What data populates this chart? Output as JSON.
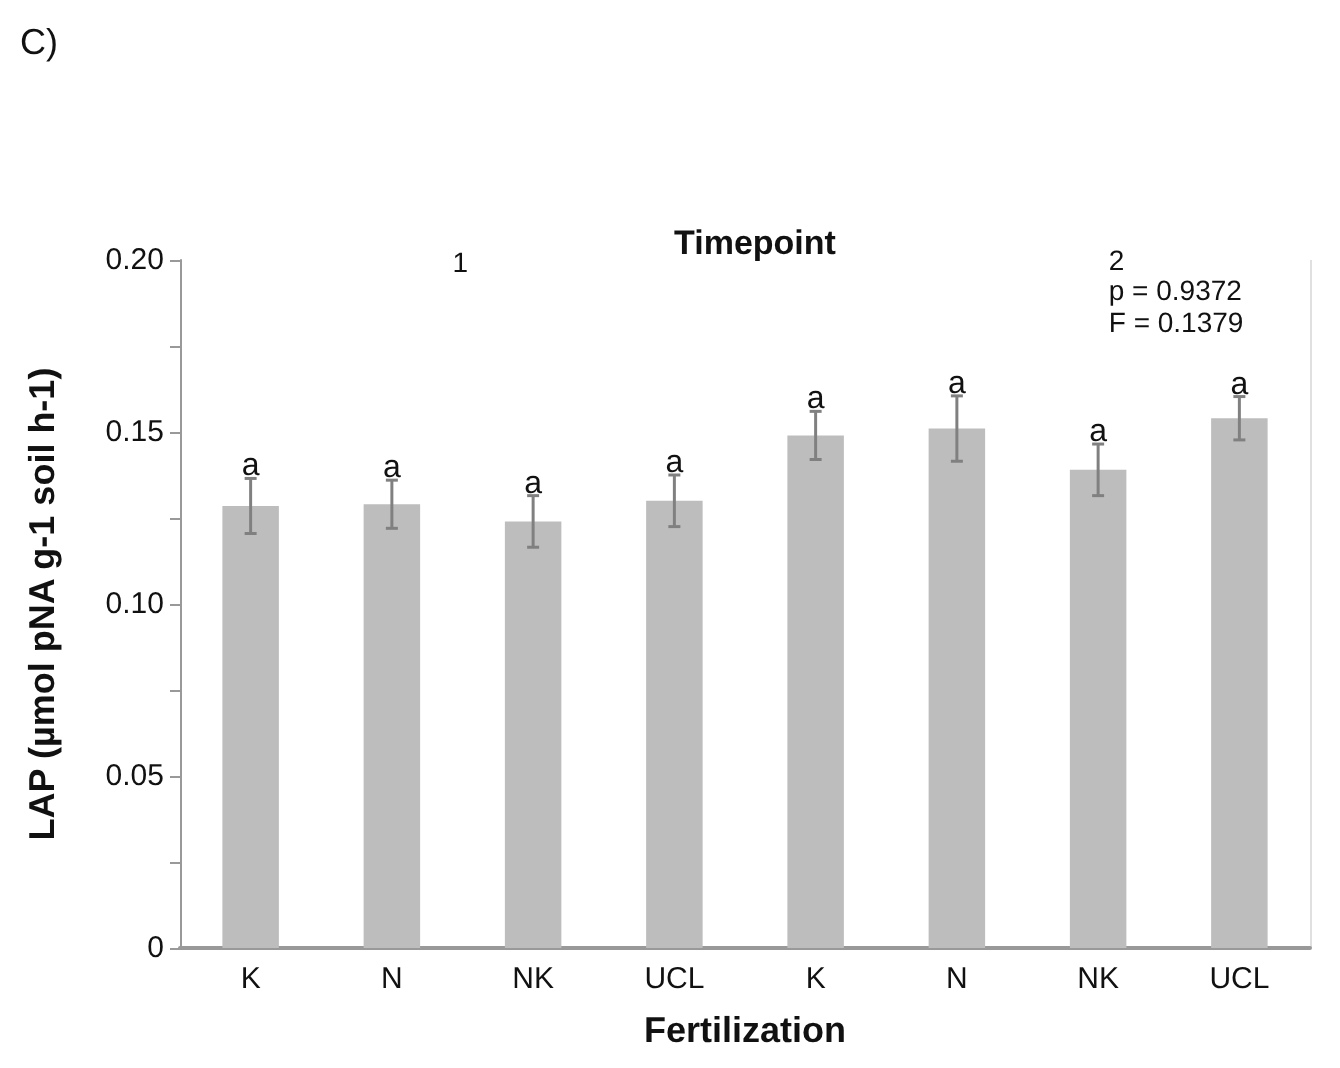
{
  "chart_data": {
    "type": "bar",
    "title": "Timepoint",
    "xlabel": "Fertilization",
    "ylabel": "LAP (µmol pNA g-1 soil h-1)",
    "categories": [
      "K",
      "N",
      "NK",
      "UCL",
      "K",
      "N",
      "NK",
      "UCL"
    ],
    "values": [
      0.1285,
      0.129,
      0.124,
      0.13,
      0.149,
      0.151,
      0.139,
      0.154
    ],
    "errors": [
      0.008,
      0.007,
      0.0075,
      0.0075,
      0.007,
      0.0095,
      0.0075,
      0.0063
    ],
    "value_labels": [
      "a",
      "a",
      "a",
      "a",
      "a",
      "a",
      "a",
      "a"
    ],
    "color": "#bdbdbd",
    "ylim": [
      0,
      0.2
    ],
    "yticks": [
      0,
      {
        "value": 0.025,
        "label": null
      },
      {
        "value": 0.05,
        "label": "0.05"
      },
      {
        "value": 0.075,
        "label": null
      },
      {
        "value": 0.1,
        "label": "0.10"
      },
      {
        "value": 0.125,
        "label": null
      },
      {
        "value": 0.15,
        "label": "0.15"
      },
      {
        "value": 0.175,
        "label": null
      },
      {
        "value": 0.2,
        "label": "0.20"
      }
    ],
    "annotations": [
      "C)",
      "1",
      "2",
      "p = 0.9372",
      "F = 0.1379"
    ],
    "grid": false
  }
}
